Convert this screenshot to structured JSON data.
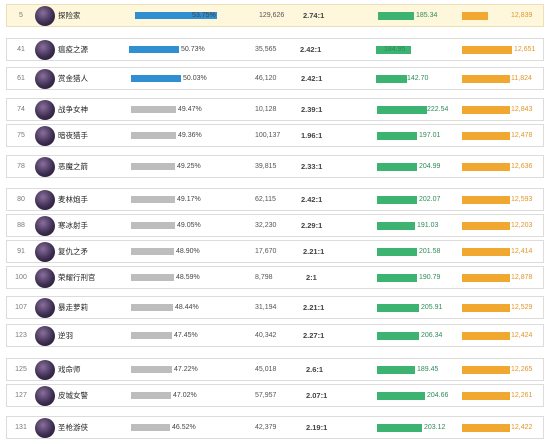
{
  "colors": {
    "win_bar_top": "#2f8fd1",
    "win_bar_other": "#bdbdbd",
    "green_bar": "#3cb371",
    "orange_bar": "#f0a830",
    "highlight_row": "#fff7dc"
  },
  "rows": [
    {
      "rank": "5",
      "name": "探险家",
      "win": "53.75%",
      "win_pct": 53.75,
      "games": "129,626",
      "kda": "2.74:1",
      "green": "185.34",
      "orange": "12,839",
      "bar": "blue"
    },
    {
      "rank": "41",
      "name": "瘟疫之源",
      "win": "50.73%",
      "win_pct": 50.73,
      "games": "35,565",
      "kda": "2.42:1",
      "green": "184.95",
      "orange": "12,651",
      "bar": "blue"
    },
    {
      "rank": "61",
      "name": "赏金猎人",
      "win": "50.03%",
      "win_pct": 50.03,
      "games": "46,120",
      "kda": "2.42:1",
      "green": "142.70",
      "orange": "11,824",
      "bar": "blue"
    },
    {
      "rank": "74",
      "name": "战争女神",
      "win": "49.47%",
      "win_pct": 49.47,
      "games": "10,128",
      "kda": "2.39:1",
      "green": "222.54",
      "orange": "12,843",
      "bar": "grey"
    },
    {
      "rank": "75",
      "name": "暗夜猎手",
      "win": "49.36%",
      "win_pct": 49.36,
      "games": "100,137",
      "kda": "1.96:1",
      "green": "197.01",
      "orange": "12,478",
      "bar": "grey"
    },
    {
      "rank": "78",
      "name": "恶魔之箭",
      "win": "49.25%",
      "win_pct": 49.25,
      "games": "39,815",
      "kda": "2.33:1",
      "green": "204.99",
      "orange": "12,636",
      "bar": "grey"
    },
    {
      "rank": "80",
      "name": "麦林炮手",
      "win": "49.17%",
      "win_pct": 49.17,
      "games": "62,115",
      "kda": "2.42:1",
      "green": "202.07",
      "orange": "12,593",
      "bar": "grey"
    },
    {
      "rank": "88",
      "name": "寒冰射手",
      "win": "49.05%",
      "win_pct": 49.05,
      "games": "32,230",
      "kda": "2.29:1",
      "green": "191.03",
      "orange": "12,203",
      "bar": "grey"
    },
    {
      "rank": "91",
      "name": "复仇之矛",
      "win": "48.90%",
      "win_pct": 48.9,
      "games": "17,670",
      "kda": "2.21:1",
      "green": "201.58",
      "orange": "12,414",
      "bar": "grey"
    },
    {
      "rank": "100",
      "name": "荣耀行刑官",
      "win": "48.59%",
      "win_pct": 48.59,
      "games": "8,798",
      "kda": "2:1",
      "green": "190.79",
      "orange": "12,878",
      "bar": "grey"
    },
    {
      "rank": "107",
      "name": "暴走萝莉",
      "win": "48.44%",
      "win_pct": 48.44,
      "games": "31,194",
      "kda": "2.21:1",
      "green": "205.91",
      "orange": "12,529",
      "bar": "grey"
    },
    {
      "rank": "123",
      "name": "逆羽",
      "win": "47.45%",
      "win_pct": 47.45,
      "games": "40,342",
      "kda": "2.27:1",
      "green": "206.34",
      "orange": "12,424",
      "bar": "grey"
    },
    {
      "rank": "125",
      "name": "戏命师",
      "win": "47.22%",
      "win_pct": 47.22,
      "games": "45,018",
      "kda": "2.6:1",
      "green": "189.45",
      "orange": "12,265",
      "bar": "grey"
    },
    {
      "rank": "127",
      "name": "皮城女警",
      "win": "47.02%",
      "win_pct": 47.02,
      "games": "57,957",
      "kda": "2.07:1",
      "green": "204.66",
      "orange": "12,261",
      "bar": "grey"
    },
    {
      "rank": "131",
      "name": "圣枪游侠",
      "win": "46.52%",
      "win_pct": 46.52,
      "games": "42,379",
      "kda": "2.19:1",
      "green": "203.12",
      "orange": "12,422",
      "bar": "grey"
    }
  ]
}
